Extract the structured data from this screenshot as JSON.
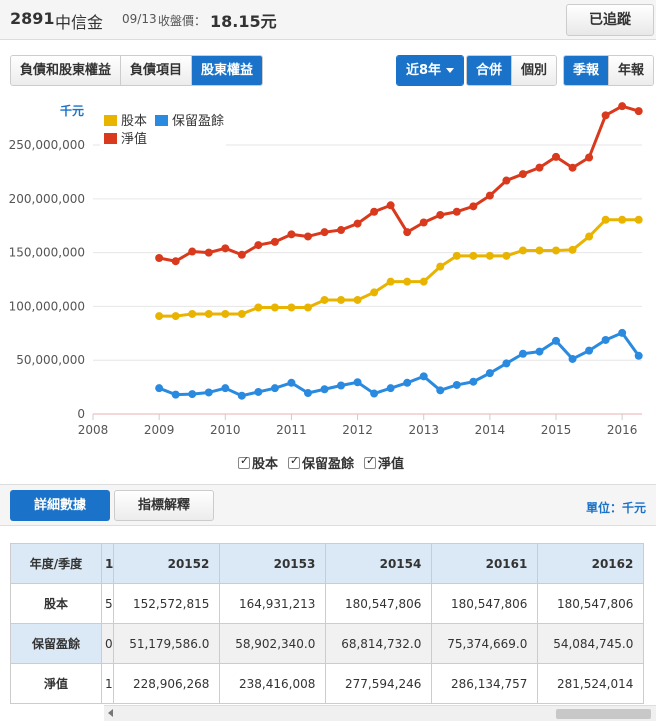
{
  "header": {
    "stock_id": "2891",
    "stock_name": "中信金",
    "close_date": "09/13",
    "close_label": "收盤價：",
    "close_price": "18.15元",
    "track_button": "已追蹤"
  },
  "tabs": [
    {
      "label": "負債和股東權益",
      "active": false
    },
    {
      "label": "負債項目",
      "active": false
    },
    {
      "label": "股東權益",
      "active": true
    }
  ],
  "range_select": "近8年",
  "consolidation": [
    {
      "label": "合併",
      "active": true
    },
    {
      "label": "個別",
      "active": false
    }
  ],
  "period": [
    {
      "label": "季報",
      "active": true
    },
    {
      "label": "年報",
      "active": false
    }
  ],
  "colors": {
    "accent": "#1a73c8",
    "capital": "#e8b400",
    "retained": "#2a8ae0",
    "equity": "#d9391c"
  },
  "chart_data": {
    "type": "line",
    "unit_label": "千元",
    "x_ticks": [
      "2008",
      "2009",
      "2010",
      "2011",
      "2012",
      "2013",
      "2014",
      "2015",
      "2016"
    ],
    "y_ticks": [
      "0",
      "50,000,000",
      "100,000,000",
      "150,000,000",
      "200,000,000",
      "250,000,000"
    ],
    "ylim": [
      0,
      290000000
    ],
    "xlim": [
      2008,
      2016.3
    ],
    "series": [
      {
        "name": "股本",
        "color": "#e8b400",
        "values": [
          91000000,
          91000000,
          93000000,
          93000000,
          93000000,
          93000000,
          99000000,
          99000000,
          99000000,
          99000000,
          106000000,
          106000000,
          106000000,
          113000000,
          123000000,
          123000000,
          123000000,
          137000000,
          147000000,
          147000000,
          147000000,
          147000000,
          152000000,
          152000000,
          152000000,
          152572815,
          164931213,
          180547806,
          180547806,
          180547806
        ]
      },
      {
        "name": "保留盈餘",
        "color": "#2a8ae0",
        "values": [
          24000000,
          18000000,
          18500000,
          20000000,
          24000000,
          17000000,
          20500000,
          24000000,
          29000000,
          19500000,
          23000000,
          26500000,
          29500000,
          19000000,
          24000000,
          29000000,
          35000000,
          22000000,
          27000000,
          30000000,
          38000000,
          47000000,
          56000000,
          58000000,
          68000000,
          51179586,
          58902340,
          68814732,
          75374669,
          54084745
        ]
      },
      {
        "name": "淨值",
        "color": "#d9391c",
        "values": [
          145000000,
          142000000,
          151000000,
          150000000,
          154000000,
          148000000,
          157000000,
          160000000,
          167000000,
          165000000,
          169000000,
          171000000,
          177000000,
          188000000,
          194000000,
          169000000,
          178000000,
          185000000,
          188000000,
          193000000,
          203000000,
          217000000,
          223000000,
          229000000,
          239000000,
          228906268,
          238416008,
          277594246,
          286134757,
          281524014
        ]
      }
    ],
    "x": [
      2009.0,
      2009.25,
      2009.5,
      2009.75,
      2010.0,
      2010.25,
      2010.5,
      2010.75,
      2011.0,
      2011.25,
      2011.5,
      2011.75,
      2012.0,
      2012.25,
      2012.5,
      2012.75,
      2013.0,
      2013.25,
      2013.5,
      2013.75,
      2014.0,
      2014.25,
      2014.5,
      2014.75,
      2015.0,
      2015.25,
      2015.5,
      2015.75,
      2016.0,
      2016.25
    ]
  },
  "bottom_legend": [
    "股本",
    "保留盈餘",
    "淨值"
  ],
  "detail_tabs": {
    "detail": "詳細數據",
    "explain": "指標解釋",
    "unit": "單位：千元"
  },
  "table": {
    "corner": "年度/季度",
    "cut_header": "1",
    "columns": [
      "20152",
      "20153",
      "20154",
      "20161",
      "20162"
    ],
    "rows": [
      {
        "label": "股本",
        "cut": "5",
        "values": [
          "152,572,815",
          "164,931,213",
          "180,547,806",
          "180,547,806",
          "180,547,806"
        ]
      },
      {
        "label": "保留盈餘",
        "cut": "0",
        "values": [
          "51,179,586.0",
          "58,902,340.0",
          "68,814,732.0",
          "75,374,669.0",
          "54,084,745.0"
        ]
      },
      {
        "label": "淨值",
        "cut": "1",
        "values": [
          "228,906,268",
          "238,416,008",
          "277,594,246",
          "286,134,757",
          "281,524,014"
        ]
      }
    ]
  }
}
